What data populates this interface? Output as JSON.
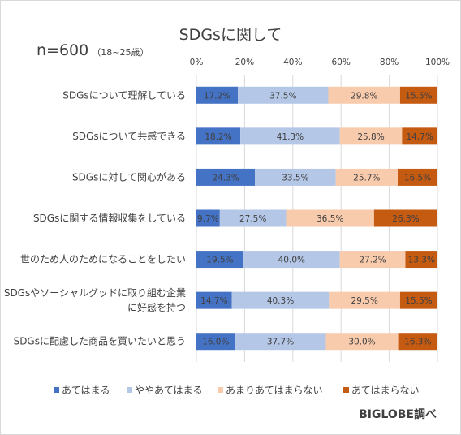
{
  "chart_data": {
    "type": "bar",
    "orientation": "horizontal",
    "stacked": "percent",
    "title": "SDGsに関して",
    "sample_label": "n=600",
    "sample_sub": "（18~25歳）",
    "source": "BIGLOBE調べ",
    "xlim": [
      0,
      100
    ],
    "x_ticks": [
      "0%",
      "20%",
      "40%",
      "60%",
      "80%",
      "100%"
    ],
    "x_tick_values": [
      0,
      20,
      40,
      60,
      80,
      100
    ],
    "grid": true,
    "legend_position": "bottom",
    "categories": [
      {
        "lines": [
          "SDGsについて理解している"
        ]
      },
      {
        "lines": [
          "SDGsについて共感できる"
        ]
      },
      {
        "lines": [
          "SDGsに対して関心がある"
        ]
      },
      {
        "lines": [
          "SDGsに関する情報収集をしている"
        ]
      },
      {
        "lines": [
          "世のため人のためになることをしたい"
        ]
      },
      {
        "lines": [
          "SDGsやソーシャルグッドに取り組む企業",
          "に好感を持つ"
        ]
      },
      {
        "lines": [
          "SDGsに配慮した商品を買いたいと思う"
        ]
      }
    ],
    "series": [
      {
        "name": "あてはまる",
        "color": "#4472c4",
        "values": [
          17.2,
          18.2,
          24.3,
          9.7,
          19.5,
          14.7,
          16.0
        ],
        "labels": [
          "17.2%",
          "18.2%",
          "24.3%",
          "9.7%",
          "19.5%",
          "14.7%",
          "16.0%"
        ]
      },
      {
        "name": "ややあてはまる",
        "color": "#b4c7e7",
        "values": [
          37.5,
          41.3,
          33.5,
          27.5,
          40.0,
          40.3,
          37.7
        ],
        "labels": [
          "37.5%",
          "41.3%",
          "33.5%",
          "27.5%",
          "40.0%",
          "40.3%",
          "37.7%"
        ]
      },
      {
        "name": "あまりあてはまらない",
        "color": "#f8cbad",
        "values": [
          29.8,
          25.8,
          25.7,
          36.5,
          27.2,
          29.5,
          30.0
        ],
        "labels": [
          "29.8%",
          "25.8%",
          "25.7%",
          "36.5%",
          "27.2%",
          "29.5%",
          "30.0%"
        ]
      },
      {
        "name": "あてはまらない",
        "color": "#c55a11",
        "values": [
          15.5,
          14.7,
          16.5,
          26.3,
          13.3,
          15.5,
          16.3
        ],
        "labels": [
          "15.5%",
          "14.7%",
          "16.5%",
          "26.3%",
          "13.3%",
          "15.5%",
          "16.3%"
        ]
      }
    ]
  }
}
